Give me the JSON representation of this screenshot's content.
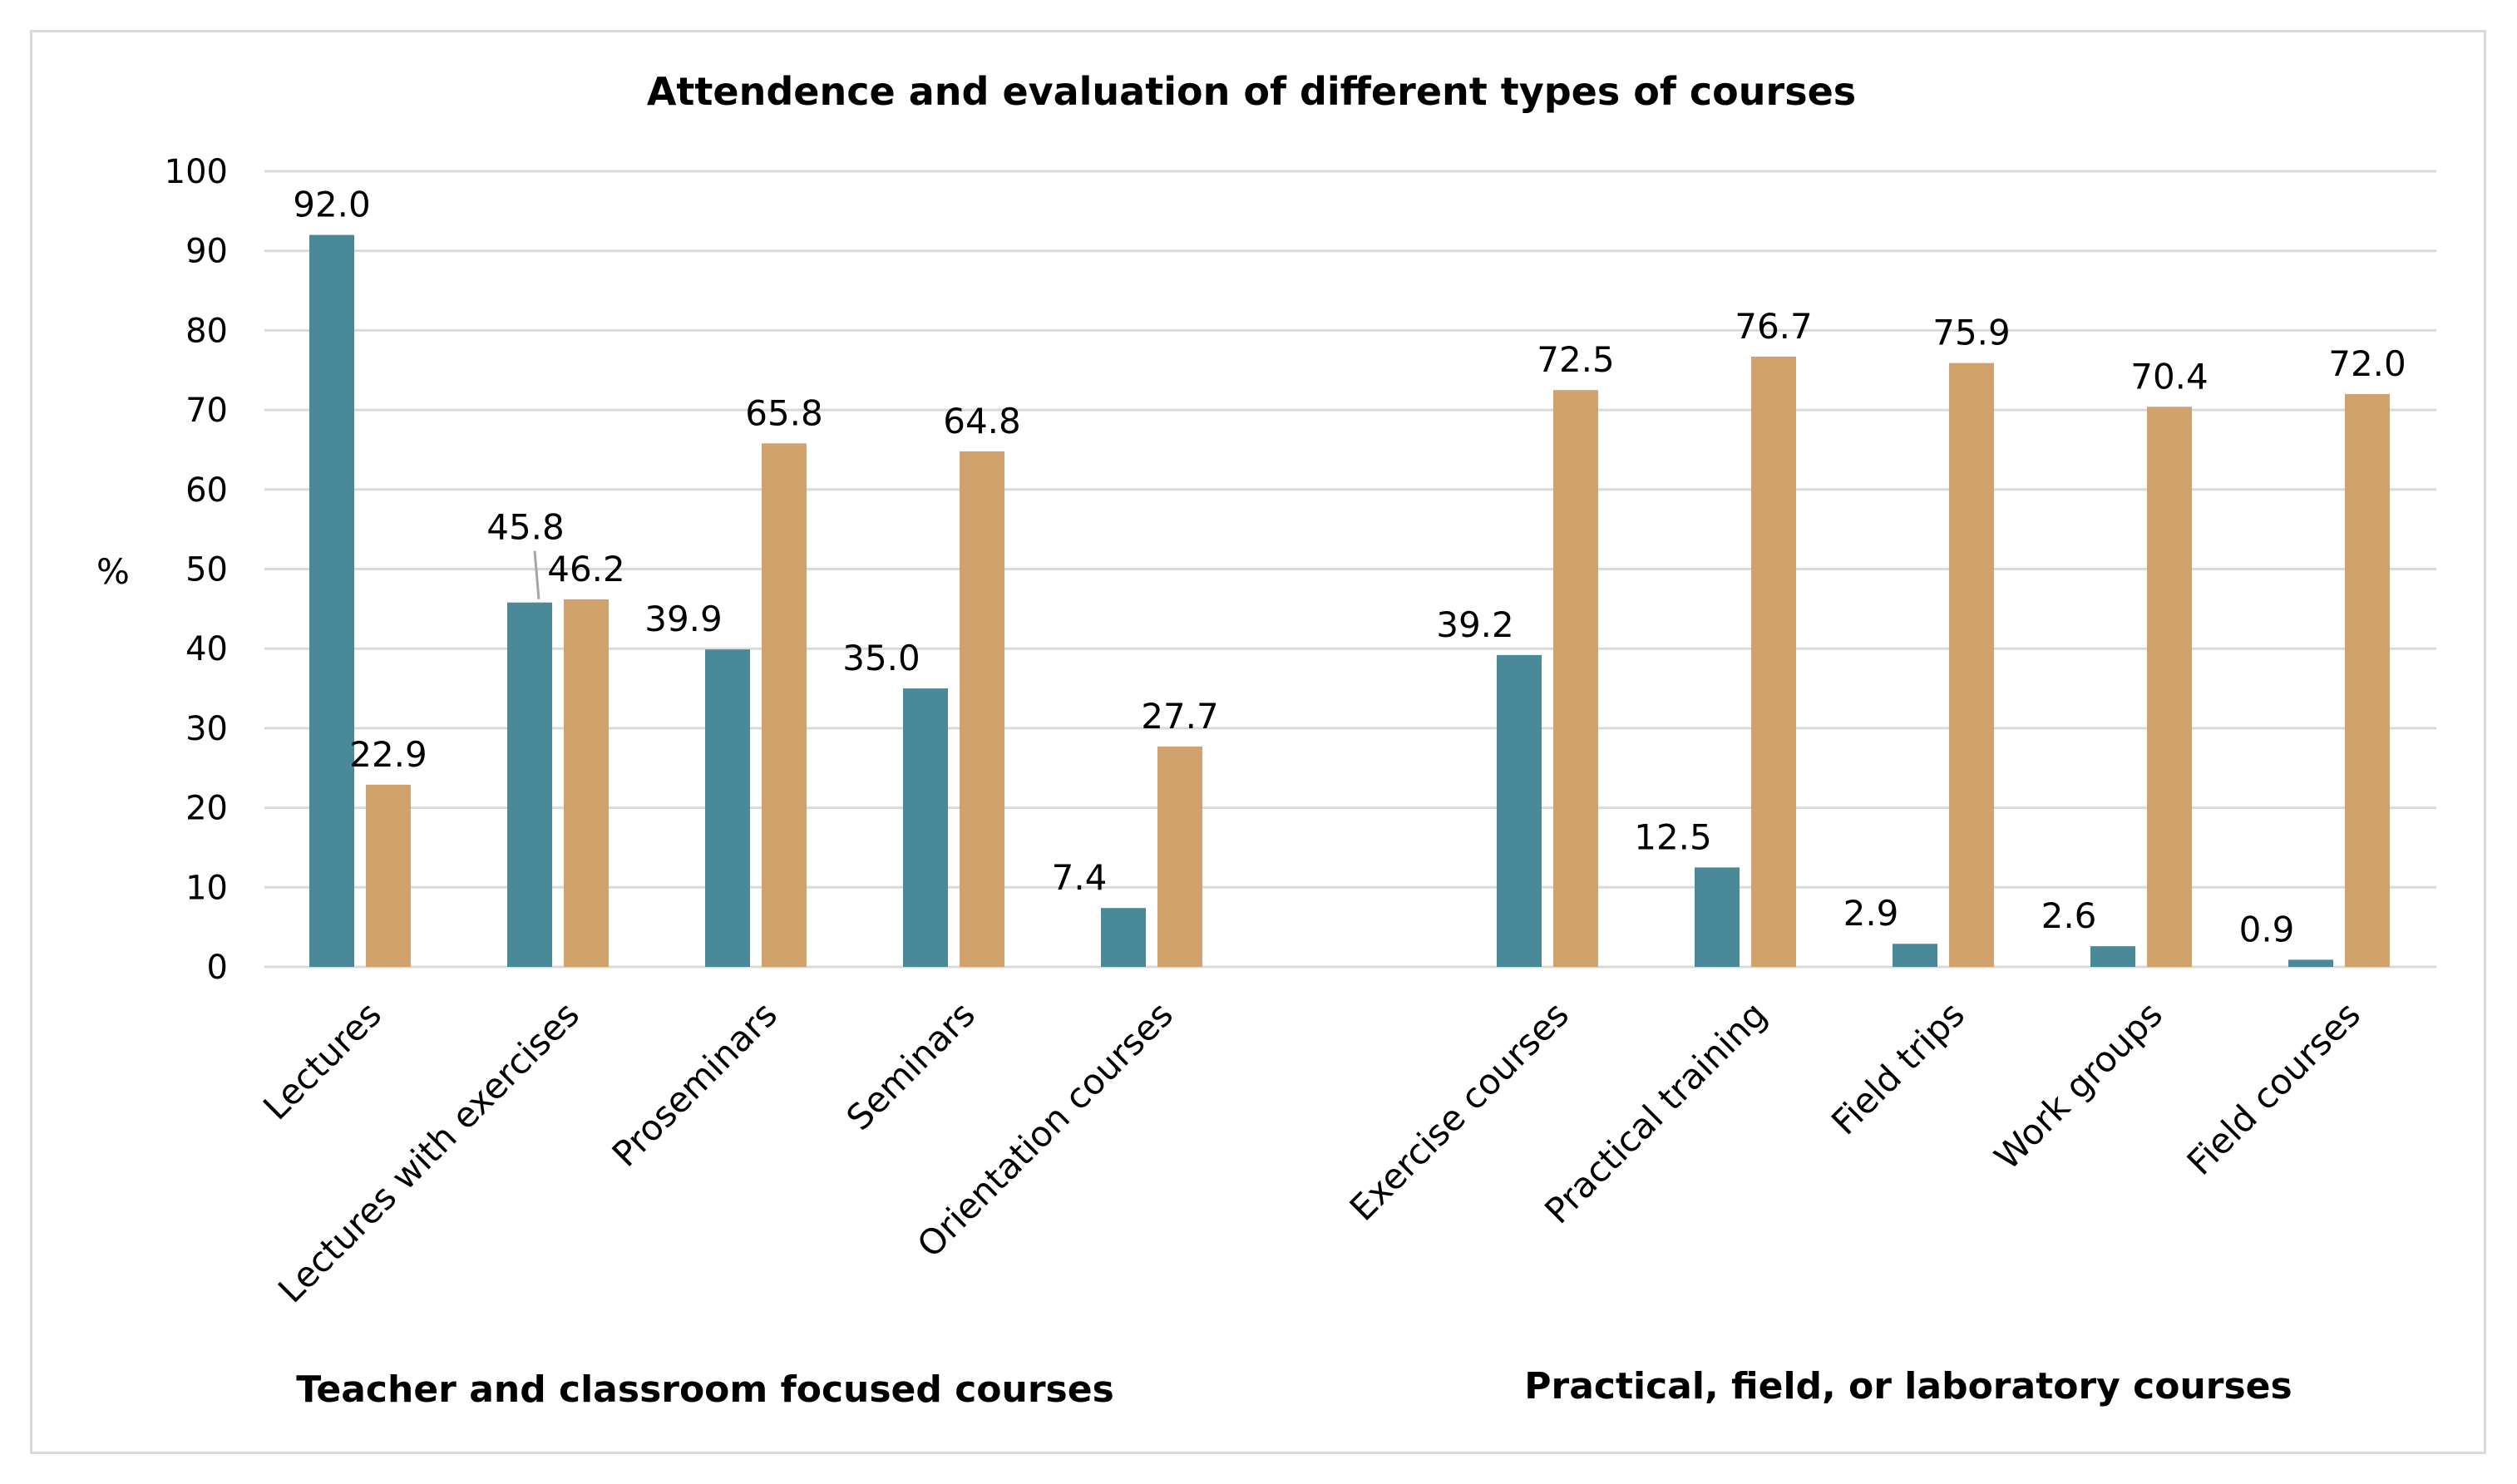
{
  "chart_data": {
    "type": "bar",
    "title": "Attendence and evaluation of different types of courses",
    "ylabel": "%",
    "xlabel": "",
    "ylim": [
      0,
      100
    ],
    "yticks": [
      0,
      10,
      20,
      30,
      40,
      50,
      60,
      70,
      80,
      90,
      100
    ],
    "grid": true,
    "categories": [
      "Lectures",
      "Lectures with exercises",
      "Proseminars",
      "Seminars",
      "Orientation courses",
      "Exercise courses",
      "Practical training",
      "Field trips",
      "Work groups",
      "Field courses"
    ],
    "series": [
      {
        "name": "Series 1",
        "color": "#4a8a98",
        "values": [
          92.0,
          45.8,
          39.9,
          35.0,
          7.4,
          39.2,
          12.5,
          2.9,
          2.6,
          0.9
        ],
        "labels": [
          "92.0",
          "45.8",
          "39.9",
          "35.0",
          "7.4",
          "39.2",
          "12.5",
          "2.9",
          "2.6",
          "0.9"
        ]
      },
      {
        "name": "Series 2",
        "color": "#d2a26c",
        "values": [
          22.9,
          46.2,
          65.8,
          64.8,
          27.7,
          72.5,
          76.7,
          75.9,
          70.4,
          72.0
        ],
        "labels": [
          "22.9",
          "46.2",
          "65.8",
          "64.8",
          "27.7",
          "72.5",
          "76.7",
          "75.9",
          "70.4",
          "72.0"
        ]
      }
    ],
    "groups": [
      {
        "label": "Teacher and classroom focused courses",
        "categories": [
          0,
          1,
          2,
          3,
          4
        ]
      },
      {
        "label": "Practical, field, or laboratory courses",
        "categories": [
          5,
          6,
          7,
          8,
          9
        ]
      }
    ]
  },
  "colors": {
    "grid": "#d9d9d9",
    "border": "#d9d9d9",
    "text": "#000000"
  }
}
